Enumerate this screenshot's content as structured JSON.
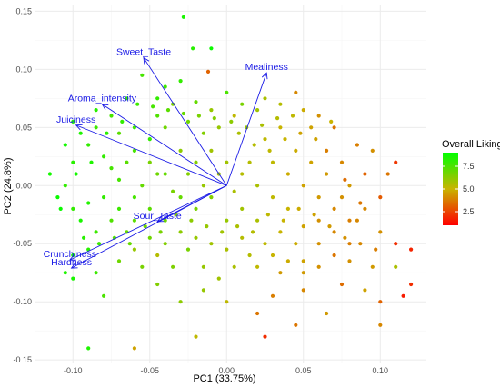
{
  "chart_data": {
    "type": "scatter",
    "title": "",
    "xlabel": "PC1 (33.75%)",
    "ylabel": "PC2 (24.8%)",
    "xlim": [
      -0.125,
      0.13
    ],
    "ylim": [
      -0.153,
      0.155
    ],
    "x_ticks": [
      -0.1,
      -0.05,
      0.0,
      0.05,
      0.1
    ],
    "x_tick_labels": [
      "-0.10",
      "-0.05",
      "0.00",
      "0.05",
      "0.10"
    ],
    "y_ticks": [
      -0.15,
      -0.1,
      -0.05,
      0.0,
      0.05,
      0.1,
      0.15
    ],
    "y_tick_labels": [
      "-0.15",
      "-0.10",
      "-0.05",
      "0.00",
      "0.05",
      "0.10",
      "0.15"
    ],
    "grid": true,
    "legend": {
      "title": "Overall Liking",
      "placement": "right",
      "range": [
        1,
        9
      ],
      "ticks": [
        2.5,
        5.0,
        7.5
      ],
      "tick_labels": [
        "2.5",
        "5.0",
        "7.5"
      ],
      "colors": [
        "#ff0000",
        "#c8b400",
        "#00ff00"
      ]
    },
    "loadings": [
      {
        "label": "Sweet_Taste",
        "x": -0.054,
        "y": 0.11
      },
      {
        "label": "Mealiness",
        "x": 0.026,
        "y": 0.097
      },
      {
        "label": "Aroma_intensity",
        "x": -0.081,
        "y": 0.07
      },
      {
        "label": "Juiciness",
        "x": -0.098,
        "y": 0.052
      },
      {
        "label": "Sour_Taste",
        "x": -0.045,
        "y": -0.031
      },
      {
        "label": "Crunchiness",
        "x": -0.102,
        "y": -0.064
      },
      {
        "label": "Hardness",
        "x": -0.101,
        "y": -0.071
      }
    ],
    "points": [
      [
        -0.028,
        0.145,
        8.5
      ],
      [
        -0.022,
        0.118,
        8.2
      ],
      [
        -0.01,
        0.118,
        8.8
      ],
      [
        -0.012,
        0.098,
        3.2
      ],
      [
        -0.03,
        0.09,
        8.0
      ],
      [
        -0.055,
        0.095,
        7.6
      ],
      [
        -0.04,
        0.085,
        7.8
      ],
      [
        0.0,
        0.08,
        7.5
      ],
      [
        0.025,
        0.075,
        5.6
      ],
      [
        -0.045,
        0.075,
        8.0
      ],
      [
        -0.035,
        0.07,
        6.5
      ],
      [
        -0.02,
        0.072,
        7.0
      ],
      [
        -0.01,
        0.065,
        6.0
      ],
      [
        0.005,
        0.06,
        5.2
      ],
      [
        0.01,
        0.07,
        6.6
      ],
      [
        0.02,
        0.065,
        5.8
      ],
      [
        0.035,
        0.07,
        5.4
      ],
      [
        0.05,
        0.065,
        4.8
      ],
      [
        0.06,
        0.06,
        4.2
      ],
      [
        0.055,
        0.05,
        4.6
      ],
      [
        0.045,
        0.08,
        4.0
      ],
      [
        0.07,
        0.05,
        3.6
      ],
      [
        0.065,
        0.03,
        3.8
      ],
      [
        0.075,
        0.02,
        4.0
      ],
      [
        0.08,
        0.0,
        4.4
      ],
      [
        0.09,
        0.01,
        3.2
      ],
      [
        0.09,
        -0.02,
        4.0
      ],
      [
        0.1,
        -0.01,
        3.0
      ],
      [
        0.1,
        -0.04,
        4.2
      ],
      [
        0.11,
        0.02,
        2.2
      ],
      [
        0.12,
        -0.055,
        1.8
      ],
      [
        0.11,
        -0.05,
        2.0
      ],
      [
        0.11,
        -0.07,
        5.6
      ],
      [
        0.095,
        -0.07,
        4.4
      ],
      [
        0.08,
        -0.065,
        4.2
      ],
      [
        0.09,
        -0.09,
        4.6
      ],
      [
        0.12,
        -0.085,
        2.0
      ],
      [
        0.115,
        -0.095,
        1.6
      ],
      [
        0.1,
        -0.1,
        3.2
      ],
      [
        0.075,
        -0.085,
        3.4
      ],
      [
        0.05,
        -0.065,
        4.6
      ],
      [
        0.035,
        -0.075,
        4.4
      ],
      [
        0.05,
        -0.09,
        4.0
      ],
      [
        0.03,
        -0.095,
        3.8
      ],
      [
        0.02,
        -0.11,
        3.6
      ],
      [
        0.0,
        -0.1,
        5.2
      ],
      [
        -0.015,
        -0.07,
        6.0
      ],
      [
        -0.025,
        -0.055,
        6.6
      ],
      [
        -0.035,
        -0.07,
        6.5
      ],
      [
        -0.045,
        -0.06,
        5.4
      ],
      [
        -0.06,
        -0.055,
        6.0
      ],
      [
        -0.07,
        -0.065,
        6.8
      ],
      [
        -0.08,
        -0.095,
        7.5
      ],
      [
        -0.1,
        -0.06,
        8.6
      ],
      [
        -0.1,
        -0.08,
        8.5
      ],
      [
        -0.105,
        -0.075,
        8.4
      ],
      [
        -0.085,
        -0.075,
        7.8
      ],
      [
        -0.09,
        -0.055,
        8.2
      ],
      [
        -0.095,
        -0.03,
        8.5
      ],
      [
        -0.1,
        -0.02,
        8.0
      ],
      [
        -0.09,
        -0.015,
        8.3
      ],
      [
        -0.11,
        -0.01,
        8.8
      ],
      [
        -0.105,
        0.0,
        8.0
      ],
      [
        -0.115,
        0.01,
        8.6
      ],
      [
        -0.1,
        0.02,
        8.2
      ],
      [
        -0.09,
        0.035,
        8.0
      ],
      [
        -0.085,
        0.05,
        7.8
      ],
      [
        -0.1,
        0.055,
        8.4
      ],
      [
        -0.075,
        0.06,
        7.6
      ],
      [
        -0.07,
        0.045,
        7.2
      ],
      [
        -0.06,
        0.05,
        7.8
      ],
      [
        -0.06,
        0.03,
        7.6
      ],
      [
        -0.05,
        0.04,
        8.0
      ],
      [
        -0.04,
        0.05,
        6.8
      ],
      [
        -0.05,
        0.02,
        6.6
      ],
      [
        -0.04,
        0.01,
        7.0
      ],
      [
        -0.03,
        0.03,
        6.2
      ],
      [
        -0.02,
        0.02,
        6.4
      ],
      [
        -0.01,
        0.03,
        5.8
      ],
      [
        0.0,
        0.02,
        5.8
      ],
      [
        0.01,
        0.01,
        5.4
      ],
      [
        0.02,
        0.0,
        5.6
      ],
      [
        0.03,
        0.02,
        5.2
      ],
      [
        0.04,
        0.01,
        4.8
      ],
      [
        0.05,
        0.0,
        4.6
      ],
      [
        0.06,
        -0.01,
        4.4
      ],
      [
        0.07,
        -0.02,
        4.0
      ],
      [
        0.06,
        -0.03,
        4.2
      ],
      [
        0.05,
        -0.035,
        4.6
      ],
      [
        0.04,
        -0.02,
        5.0
      ],
      [
        0.03,
        -0.01,
        5.2
      ],
      [
        0.02,
        -0.03,
        5.6
      ],
      [
        0.01,
        -0.02,
        5.8
      ],
      [
        0.0,
        -0.03,
        6.0
      ],
      [
        -0.01,
        -0.01,
        6.4
      ],
      [
        -0.02,
        -0.02,
        6.6
      ],
      [
        -0.03,
        -0.01,
        7.0
      ],
      [
        -0.04,
        -0.03,
        6.8
      ],
      [
        -0.05,
        -0.02,
        7.2
      ],
      [
        -0.06,
        -0.01,
        7.6
      ],
      [
        -0.07,
        -0.02,
        7.8
      ],
      [
        -0.08,
        -0.01,
        8.0
      ],
      [
        -0.075,
        0.015,
        7.6
      ],
      [
        -0.065,
        0.02,
        7.2
      ],
      [
        -0.055,
        0.0,
        7.0
      ],
      [
        -0.045,
        0.01,
        6.8
      ],
      [
        -0.035,
        -0.005,
        6.6
      ],
      [
        -0.025,
        0.01,
        6.4
      ],
      [
        -0.015,
        0.0,
        6.0
      ],
      [
        -0.005,
        0.01,
        5.8
      ],
      [
        0.005,
        -0.005,
        5.6
      ],
      [
        0.015,
        0.02,
        5.4
      ],
      [
        0.025,
        0.04,
        5.2
      ],
      [
        0.035,
        0.05,
        5.0
      ],
      [
        0.045,
        0.03,
        4.8
      ],
      [
        0.055,
        0.02,
        4.6
      ],
      [
        0.065,
        0.01,
        4.4
      ],
      [
        0.075,
        -0.01,
        4.2
      ],
      [
        0.085,
        -0.03,
        4.0
      ],
      [
        0.08,
        -0.05,
        3.8
      ],
      [
        0.07,
        -0.06,
        3.6
      ],
      [
        0.06,
        -0.07,
        4.2
      ],
      [
        0.045,
        -0.05,
        4.8
      ],
      [
        0.035,
        -0.04,
        5.0
      ],
      [
        0.025,
        -0.05,
        5.2
      ],
      [
        0.015,
        -0.06,
        5.4
      ],
      [
        0.005,
        -0.07,
        5.6
      ],
      [
        -0.005,
        -0.08,
        5.8
      ],
      [
        -0.015,
        -0.09,
        6.0
      ],
      [
        -0.03,
        -0.1,
        6.2
      ],
      [
        -0.045,
        -0.085,
        6.4
      ],
      [
        -0.055,
        -0.07,
        6.6
      ],
      [
        -0.065,
        -0.04,
        7.0
      ],
      [
        -0.075,
        -0.03,
        7.4
      ],
      [
        -0.085,
        -0.04,
        7.8
      ],
      [
        -0.065,
        0.075,
        8.0
      ],
      [
        -0.045,
        0.06,
        7.4
      ],
      [
        -0.025,
        0.055,
        6.8
      ],
      [
        -0.015,
        0.045,
        6.4
      ],
      [
        -0.005,
        0.05,
        6.0
      ],
      [
        0.008,
        0.045,
        5.6
      ],
      [
        0.018,
        0.035,
        5.4
      ],
      [
        0.028,
        0.03,
        5.2
      ],
      [
        0.038,
        0.04,
        5.0
      ],
      [
        0.048,
        0.045,
        4.6
      ],
      [
        -0.085,
        0.065,
        8.2
      ],
      [
        -0.095,
        0.045,
        8.4
      ],
      [
        -0.105,
        0.035,
        8.6
      ],
      [
        -0.08,
        0.025,
        8.0
      ],
      [
        -0.07,
        0.005,
        7.6
      ],
      [
        -0.06,
        -0.03,
        7.2
      ],
      [
        -0.05,
        -0.045,
        6.8
      ],
      [
        -0.04,
        -0.05,
        6.4
      ],
      [
        -0.03,
        -0.04,
        6.2
      ],
      [
        -0.02,
        -0.045,
        6.0
      ],
      [
        -0.01,
        -0.05,
        5.8
      ],
      [
        0.0,
        -0.055,
        5.6
      ],
      [
        0.01,
        -0.045,
        5.4
      ],
      [
        0.02,
        -0.07,
        5.2
      ],
      [
        0.03,
        -0.06,
        5.0
      ],
      [
        0.04,
        -0.065,
        4.8
      ],
      [
        0.05,
        -0.075,
        4.4
      ],
      [
        0.06,
        -0.05,
        4.2
      ],
      [
        0.07,
        -0.04,
        4.0
      ],
      [
        0.08,
        -0.03,
        3.8
      ],
      [
        0.065,
        -0.11,
        4.4
      ],
      [
        0.045,
        -0.12,
        3.6
      ],
      [
        0.025,
        -0.13,
        2.0
      ],
      [
        -0.02,
        -0.13,
        5.2
      ],
      [
        -0.06,
        -0.14,
        4.6
      ],
      [
        -0.09,
        -0.14,
        8.4
      ],
      [
        0.1,
        -0.12,
        4.0
      ],
      [
        0.105,
        0.01,
        3.6
      ],
      [
        0.095,
        0.03,
        4.2
      ],
      [
        0.085,
        0.035,
        3.8
      ],
      [
        0.068,
        0.055,
        5.0
      ],
      [
        0.058,
        0.04,
        4.6
      ],
      [
        0.043,
        0.06,
        5.2
      ],
      [
        0.033,
        0.058,
        5.4
      ],
      [
        0.023,
        0.052,
        5.6
      ],
      [
        0.013,
        0.05,
        6.0
      ],
      [
        0.003,
        0.055,
        6.2
      ],
      [
        -0.008,
        0.058,
        6.4
      ],
      [
        -0.018,
        0.06,
        6.6
      ],
      [
        -0.028,
        0.062,
        7.0
      ],
      [
        -0.038,
        0.065,
        7.2
      ],
      [
        -0.048,
        0.068,
        7.6
      ],
      [
        -0.058,
        0.07,
        7.8
      ],
      [
        -0.068,
        0.055,
        8.0
      ],
      [
        -0.078,
        0.045,
        8.2
      ],
      [
        -0.088,
        0.02,
        8.4
      ],
      [
        -0.098,
        0.01,
        8.6
      ],
      [
        -0.108,
        -0.02,
        8.8
      ],
      [
        -0.093,
        -0.045,
        8.2
      ],
      [
        -0.083,
        -0.05,
        7.8
      ],
      [
        -0.073,
        -0.045,
        7.4
      ],
      [
        -0.063,
        -0.05,
        7.0
      ],
      [
        -0.053,
        -0.035,
        6.8
      ],
      [
        -0.043,
        -0.04,
        6.6
      ],
      [
        -0.033,
        -0.025,
        6.4
      ],
      [
        -0.023,
        -0.03,
        6.2
      ],
      [
        -0.013,
        -0.035,
        6.0
      ],
      [
        -0.003,
        -0.04,
        5.8
      ],
      [
        0.007,
        -0.035,
        5.6
      ],
      [
        0.017,
        -0.04,
        5.4
      ],
      [
        0.027,
        -0.025,
        5.2
      ],
      [
        0.037,
        -0.03,
        5.0
      ],
      [
        0.047,
        -0.02,
        4.8
      ],
      [
        0.057,
        -0.025,
        4.6
      ],
      [
        0.067,
        -0.035,
        4.4
      ],
      [
        0.077,
        -0.045,
        4.2
      ],
      [
        0.087,
        -0.05,
        4.0
      ],
      [
        0.097,
        -0.055,
        3.8
      ],
      [
        0.087,
        -0.015,
        3.6
      ],
      [
        0.077,
        0.005,
        3.4
      ]
    ]
  }
}
